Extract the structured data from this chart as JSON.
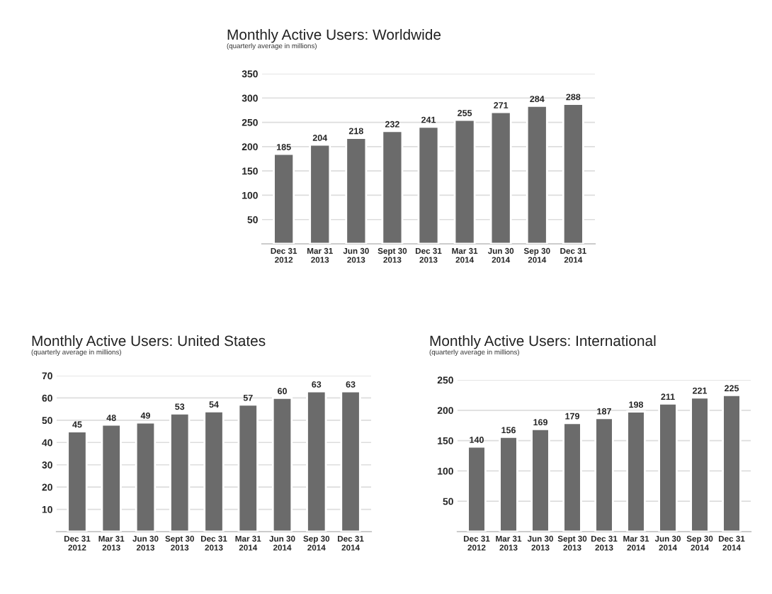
{
  "chart_data": [
    {
      "type": "bar",
      "title": "Monthly Active Users: Worldwide",
      "subtitle": "(quarterly average in millions)",
      "categories": [
        "Dec 31\n2012",
        "Mar 31\n2013",
        "Jun 30\n2013",
        "Sept 30\n2013",
        "Dec 31\n2013",
        "Mar 31\n2014",
        "Jun 30\n2014",
        "Sep 30\n2014",
        "Dec 31\n2014"
      ],
      "values": [
        185,
        204,
        218,
        232,
        241,
        255,
        271,
        284,
        288
      ],
      "color": "#6b6b6b",
      "ylim": [
        0,
        350
      ],
      "yticks": [
        50,
        100,
        150,
        200,
        250,
        300,
        350
      ],
      "grid": "y",
      "data_labels": true
    },
    {
      "type": "bar",
      "title": "Monthly Active Users: United States",
      "subtitle": "(quarterly average in millions)",
      "categories": [
        "Dec 31\n2012",
        "Mar 31\n2013",
        "Jun 30\n2013",
        "Sept 30\n2013",
        "Dec 31\n2013",
        "Mar 31\n2014",
        "Jun 30\n2014",
        "Sep 30\n2014",
        "Dec 31\n2014"
      ],
      "values": [
        45,
        48,
        49,
        53,
        54,
        57,
        60,
        63,
        63
      ],
      "color": "#6b6b6b",
      "ylim": [
        0,
        70
      ],
      "yticks": [
        10,
        20,
        30,
        40,
        50,
        60,
        70
      ],
      "grid": "y",
      "data_labels": true
    },
    {
      "type": "bar",
      "title": "Monthly Active Users: International",
      "subtitle": "(quarterly average in millions)",
      "categories": [
        "Dec 31\n2012",
        "Mar 31\n2013",
        "Jun 30\n2013",
        "Sept 30\n2013",
        "Dec 31\n2013",
        "Mar 31\n2014",
        "Jun 30\n2014",
        "Sep 30\n2014",
        "Dec 31\n2014"
      ],
      "values": [
        140,
        156,
        169,
        179,
        187,
        198,
        211,
        221,
        225
      ],
      "color": "#6b6b6b",
      "ylim": [
        0,
        250
      ],
      "yticks": [
        50,
        100,
        150,
        200,
        250
      ],
      "grid": "y",
      "data_labels": true
    }
  ]
}
